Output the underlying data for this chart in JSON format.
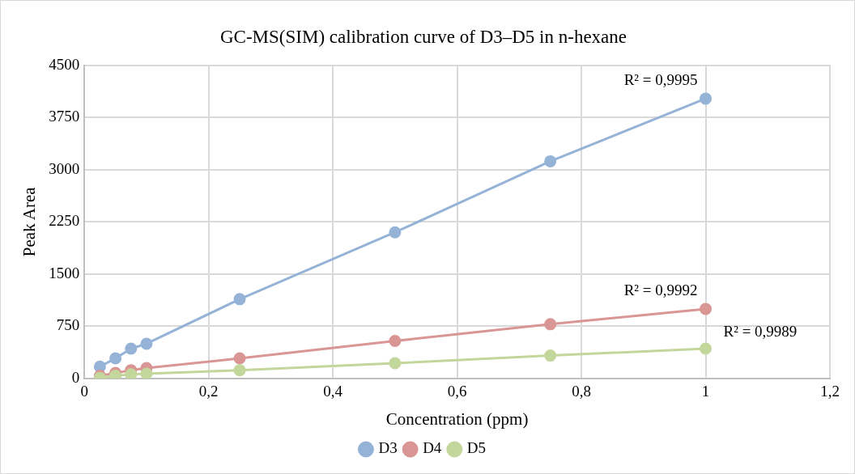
{
  "chart_data": {
    "type": "line",
    "title": "GC-MS(SIM) calibration curve of D3–D5 in n-hexane",
    "xlabel": "Concentration (ppm)",
    "ylabel": "Peak Area",
    "x": [
      0.025,
      0.05,
      0.075,
      0.1,
      0.25,
      0.5,
      0.75,
      1
    ],
    "series": [
      {
        "name": "D3",
        "color": "#95b3d7",
        "values": [
          170,
          290,
          430,
          500,
          1140,
          2100,
          3120,
          4020
        ]
      },
      {
        "name": "D4",
        "color": "#d99694",
        "values": [
          40,
          80,
          120,
          150,
          290,
          540,
          780,
          1000
        ]
      },
      {
        "name": "D5",
        "color": "#c3d69b",
        "values": [
          10,
          40,
          60,
          70,
          120,
          220,
          330,
          430
        ]
      }
    ],
    "annotations": [
      "R² = 0,9995",
      "R² = 0,9992",
      "R² = 0,9989"
    ],
    "xlim": [
      0,
      1.2
    ],
    "xticks": [
      0,
      {
        "value": 0.2,
        "label": "0,2"
      },
      {
        "value": 0.4,
        "label": "0,4"
      },
      {
        "value": 0.6,
        "label": "0,6"
      },
      {
        "value": 0.8,
        "label": "0,8"
      },
      1,
      {
        "value": 1.2,
        "label": "1,2"
      }
    ],
    "ylim": [
      0,
      4500
    ],
    "yticks": [
      0,
      750,
      1500,
      2250,
      3000,
      3750,
      4500
    ],
    "grid": true,
    "legend": "bottom",
    "marker": "circle",
    "line_style": "solid"
  }
}
